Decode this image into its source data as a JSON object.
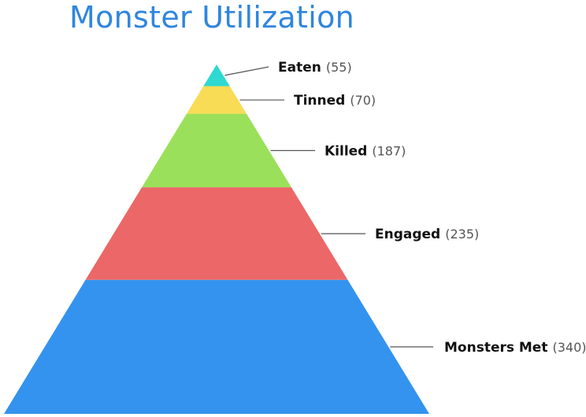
{
  "chart_data": {
    "type": "pyramid",
    "title": "Monster Utilization",
    "categories": [
      "Eaten",
      "Tinned",
      "Killed",
      "Engaged",
      "Monsters Met"
    ],
    "values": [
      55,
      70,
      187,
      235,
      340
    ],
    "value_labels": [
      "(55)",
      "(70)",
      "(187)",
      "(235)",
      "(340)"
    ],
    "colors": [
      "#2ed9d2",
      "#f8dc55",
      "#9be05a",
      "#ec6767",
      "#3393ee"
    ]
  }
}
